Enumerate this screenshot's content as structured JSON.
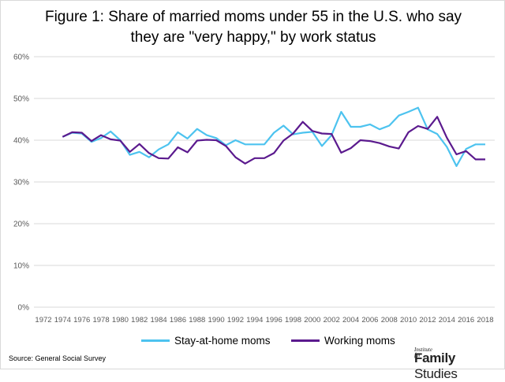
{
  "title_line1": "Figure 1: Share of married moms under 55 in the U.S. who say",
  "title_line2": "they are \"very happy,\" by work status",
  "source": "Source: General Social Survey",
  "logo": {
    "small": "Institute for",
    "bold": "Family",
    "light": "Studies"
  },
  "colors": {
    "stay_at_home": "#4dc3ef",
    "working": "#5b1a8e",
    "grid": "#d9d9d9"
  },
  "chart_data": {
    "type": "line",
    "title": "Figure 1: Share of married moms under 55 in the U.S. who say they are \"very happy,\" by work status",
    "xlabel": "",
    "ylabel": "",
    "x_range": [
      1972,
      2018
    ],
    "x_ticks": [
      "1972",
      "1974",
      "1976",
      "1978",
      "1980",
      "1982",
      "1984",
      "1986",
      "1988",
      "1990",
      "1992",
      "1994",
      "1996",
      "1998",
      "2000",
      "2002",
      "2004",
      "2006",
      "2008",
      "2010",
      "2012",
      "2014",
      "2016",
      "2018"
    ],
    "ylim": [
      0,
      60
    ],
    "y_ticks": [
      "0%",
      "10%",
      "20%",
      "30%",
      "40%",
      "50%",
      "60%"
    ],
    "grid": true,
    "legend_position": "bottom",
    "series": [
      {
        "name": "Stay-at-home moms",
        "color": "#4dc3ef",
        "x": [
          1974,
          1975,
          1976,
          1977,
          1978,
          1979,
          1980,
          1981,
          1982,
          1983,
          1984,
          1985,
          1986,
          1987,
          1988,
          1989,
          1990,
          1991,
          1992,
          1993,
          1994,
          1995,
          1996,
          1997,
          1998,
          1999,
          2000,
          2001,
          2002,
          2003,
          2004,
          2005,
          2006,
          2007,
          2008,
          2009,
          2010,
          2011,
          2012,
          2013,
          2014,
          2015,
          2016,
          2017,
          2018
        ],
        "values": [
          40.8,
          41.8,
          41.6,
          39.6,
          40.5,
          42.1,
          40,
          36.5,
          37.2,
          35.9,
          37.8,
          39,
          41.9,
          40.4,
          42.7,
          41.2,
          40.5,
          38.8,
          40,
          39,
          39,
          39,
          41.8,
          43.5,
          41.4,
          41.8,
          42,
          38.6,
          41.2,
          46.8,
          43.2,
          43.2,
          43.8,
          42.6,
          43.5,
          45.9,
          46.8,
          47.8,
          42.6,
          41.5,
          38.4,
          33.8,
          37.9,
          39,
          39
        ]
      },
      {
        "name": "Working moms",
        "color": "#5b1a8e",
        "x": [
          1974,
          1975,
          1976,
          1977,
          1978,
          1979,
          1980,
          1981,
          1982,
          1983,
          1984,
          1985,
          1986,
          1987,
          1988,
          1989,
          1990,
          1991,
          1992,
          1993,
          1994,
          1995,
          1996,
          1997,
          1998,
          1999,
          2000,
          2001,
          2002,
          2003,
          2004,
          2005,
          2006,
          2007,
          2008,
          2009,
          2010,
          2011,
          2012,
          2013,
          2014,
          2015,
          2016,
          2017,
          2018
        ],
        "values": [
          40.8,
          41.9,
          41.8,
          39.8,
          41.2,
          40.2,
          39.9,
          37.2,
          39.1,
          36.9,
          35.7,
          35.6,
          38.3,
          37.1,
          39.9,
          40.1,
          40,
          38.6,
          35.9,
          34.4,
          35.7,
          35.7,
          36.9,
          39.9,
          41.6,
          44.4,
          42.2,
          41.6,
          41.5,
          37,
          38.1,
          40,
          39.8,
          39.3,
          38.5,
          38,
          41.9,
          43.4,
          42.7,
          45.6,
          40.6,
          36.6,
          37.4,
          35.4,
          35.4
        ]
      }
    ]
  }
}
